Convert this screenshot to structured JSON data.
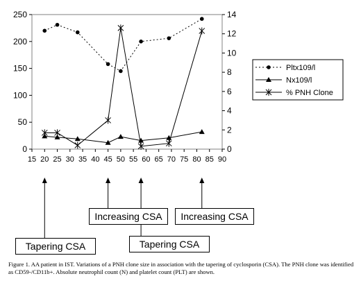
{
  "chart_data": {
    "type": "line",
    "title": "",
    "xlabel": "",
    "ylabel": "",
    "xlim": [
      15,
      90
    ],
    "xticks": [
      15,
      20,
      25,
      30,
      35,
      40,
      45,
      50,
      55,
      60,
      65,
      70,
      75,
      80,
      85,
      90
    ],
    "ylim_left": [
      0,
      250
    ],
    "yticks_left": [
      0,
      50,
      100,
      150,
      200,
      250
    ],
    "ylim_right": [
      0,
      14
    ],
    "yticks_right": [
      0,
      2,
      4,
      6,
      8,
      10,
      12,
      14
    ],
    "grid": false,
    "legend_position": "right",
    "series": [
      {
        "name": "Pltx109/l",
        "axis": "left",
        "style": "dotted",
        "marker": "circle",
        "color": "#000000",
        "x": [
          20,
          25,
          33,
          45,
          50,
          58,
          69,
          82
        ],
        "y": [
          220,
          231,
          217,
          158,
          145,
          200,
          206,
          242
        ]
      },
      {
        "name": "Nx109/l",
        "axis": "left",
        "style": "solid",
        "marker": "triangle",
        "color": "#000000",
        "x": [
          20,
          25,
          33,
          45,
          50,
          58,
          69,
          82
        ],
        "y": [
          24,
          22,
          19,
          12,
          23,
          16,
          21,
          32
        ]
      },
      {
        "name": "% PNH Clone",
        "axis": "right",
        "style": "solid",
        "marker": "star",
        "color": "#000000",
        "x": [
          20,
          25,
          33,
          45,
          50,
          58,
          69,
          82
        ],
        "y": [
          1.7,
          1.7,
          0.4,
          3.0,
          12.6,
          0.3,
          0.6,
          12.3
        ]
      }
    ]
  },
  "events": [
    {
      "label": "Tapering CSA",
      "x": 20
    },
    {
      "label": "Increasing CSA",
      "x": 45
    },
    {
      "label": "Tapering CSA",
      "x": 58
    },
    {
      "label": "Increasing CSA",
      "x": 82
    }
  ],
  "caption": "Figure 1. AA patient in IST. Variations of a PNH clone size  in association with the tapering of cyclosporin (CSA). The PNH clone was identified as CD59-/CD11b+. Absolute neutrophil count (N) and platelet count (PLT) are shown."
}
